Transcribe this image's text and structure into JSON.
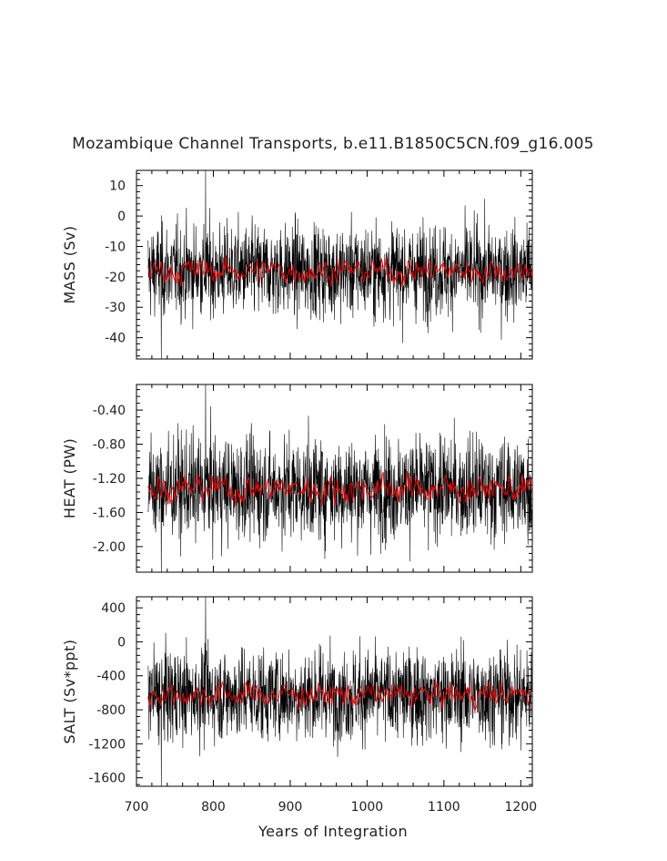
{
  "title": "Mozambique Channel Transports, b.e11.B1850C5CN.f09_g16.005",
  "xlabel": "Years of Integration",
  "x_ticks": [
    "700",
    "800",
    "900",
    "1000",
    "1100",
    "1200"
  ],
  "colors": {
    "raw": "#000000",
    "smoothed": "#ff0000",
    "frame": "#000000"
  },
  "chart_data": [
    {
      "type": "line",
      "panel": "mass",
      "ylabel": "MASS (Sv)",
      "xlim": [
        700,
        1215
      ],
      "ylim": [
        -47,
        15
      ],
      "x_range": [
        715,
        1214
      ],
      "y_ticks": [
        10,
        0,
        -10,
        -20,
        -30,
        -40
      ],
      "y_tick_labels": [
        "10",
        "0",
        "-10",
        "-20",
        "-30",
        "-40"
      ],
      "series": [
        {
          "kind": "monthly",
          "mean": -18,
          "stdev": 7.5,
          "max": 15,
          "min": -47
        },
        {
          "kind": "smoothed",
          "mean": -18,
          "stdev": 2
        }
      ]
    },
    {
      "type": "line",
      "panel": "heat",
      "ylabel": "HEAT (PW)",
      "xlim": [
        700,
        1215
      ],
      "ylim": [
        -2.3,
        -0.1
      ],
      "x_range": [
        715,
        1214
      ],
      "y_ticks": [
        -0.4,
        -0.8,
        -1.2,
        -1.6,
        -2.0
      ],
      "y_tick_labels": [
        "-0.40",
        "-0.80",
        "-1.20",
        "-1.60",
        "-2.00"
      ],
      "series": [
        {
          "kind": "monthly",
          "mean": -1.32,
          "stdev": 0.3,
          "max": -0.1,
          "min": -2.3
        },
        {
          "kind": "smoothed",
          "mean": -1.32,
          "stdev": 0.08
        }
      ]
    },
    {
      "type": "line",
      "panel": "salt",
      "ylabel": "SALT (Sv*ppt)",
      "xlim": [
        700,
        1215
      ],
      "ylim": [
        -1700,
        530
      ],
      "x_range": [
        715,
        1214
      ],
      "y_ticks": [
        400,
        0,
        -400,
        -800,
        -1200,
        -1600
      ],
      "y_tick_labels": [
        "400",
        "0",
        "-400",
        "-800",
        "-1200",
        "-1600"
      ],
      "series": [
        {
          "kind": "monthly",
          "mean": -620,
          "stdev": 270,
          "max": 530,
          "min": -1700
        },
        {
          "kind": "smoothed",
          "mean": -620,
          "stdev": 70
        }
      ]
    }
  ]
}
